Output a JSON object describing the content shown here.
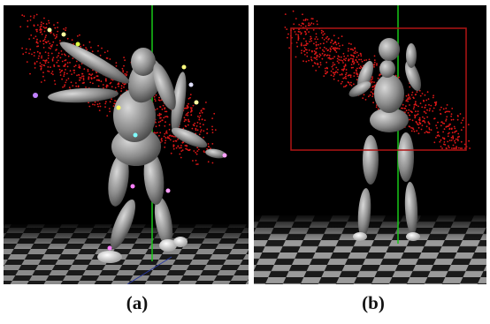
{
  "figure": {
    "panels": [
      {
        "id": "a",
        "caption": "(a)"
      },
      {
        "id": "b",
        "caption": "(b)"
      }
    ]
  },
  "colors": {
    "background": "#000000",
    "point_cloud": "#e01818",
    "body_segment": "#8c8c8c",
    "vertical_axis": "#19c819",
    "bounding_box": "#b01414",
    "floor_light": "#9a9a9a",
    "floor_dark": "#1a1a1a"
  },
  "point_cloud_density": {
    "a": 900,
    "b": 800
  }
}
